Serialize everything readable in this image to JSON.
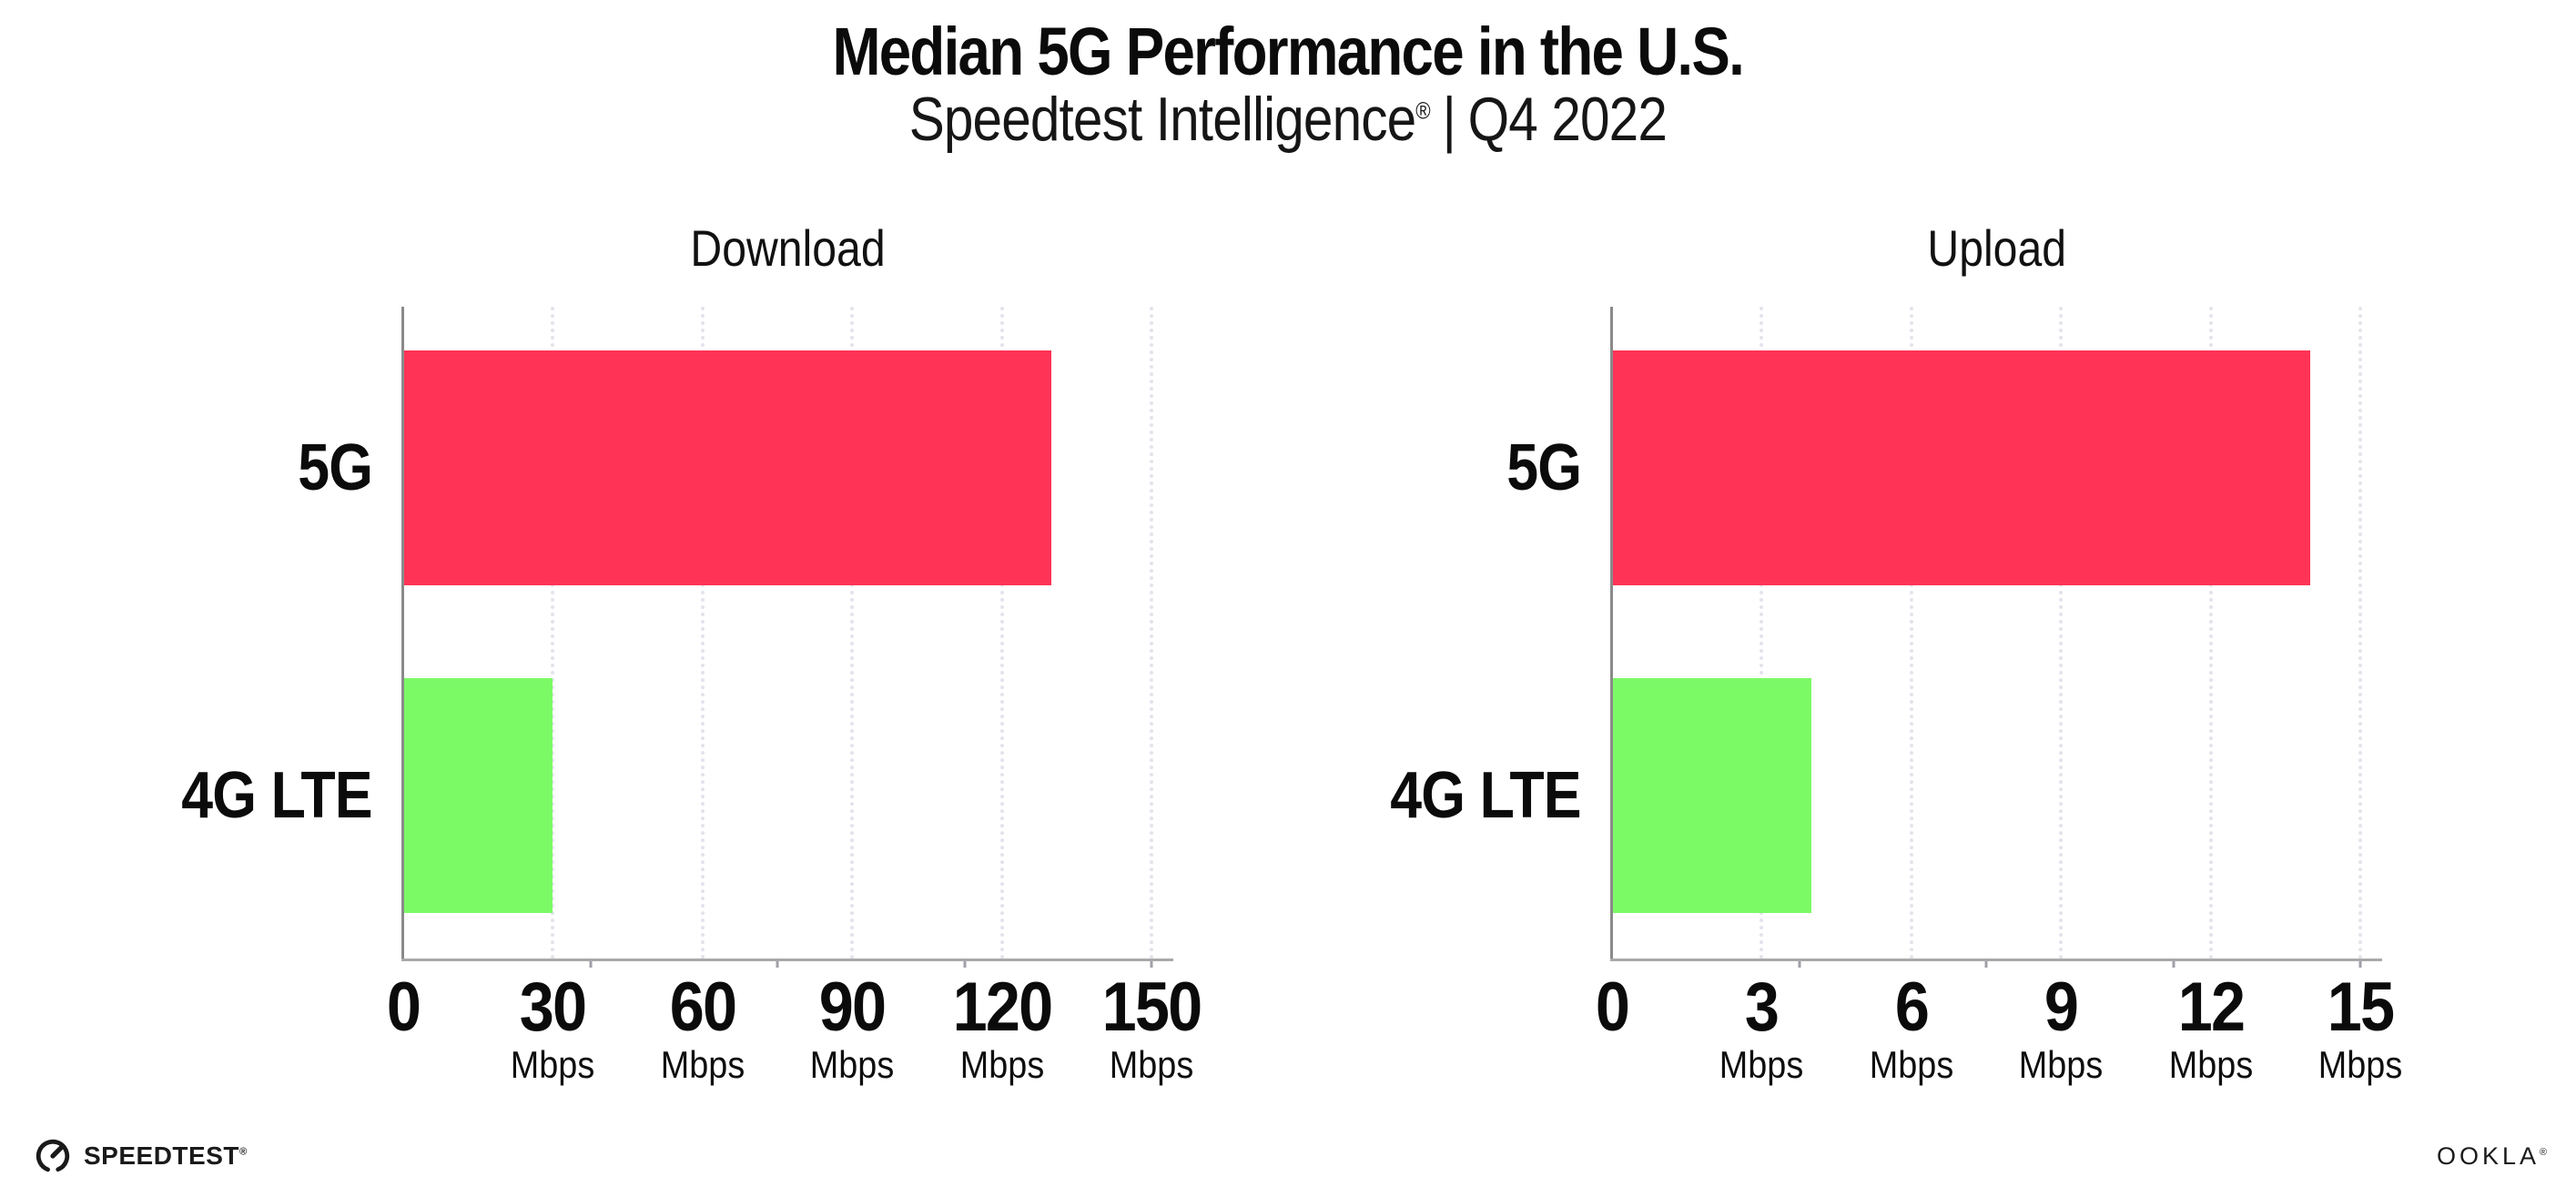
{
  "header": {
    "title": "Median 5G Performance in the U.S.",
    "subtitle_brand": "Speedtest Intelligence",
    "registered_mark": "®",
    "subtitle_divider": "|",
    "subtitle_period": "Q4 2022"
  },
  "chart_data": [
    {
      "type": "bar",
      "orientation": "horizontal",
      "title": "Download",
      "categories": [
        "5G",
        "4G LTE"
      ],
      "values": [
        130,
        30
      ],
      "value_unit": "Mbps",
      "xlim": [
        0,
        150
      ],
      "xticks": [
        0,
        30,
        60,
        90,
        120,
        150
      ],
      "xtick_unit_label": "Mbps",
      "unit_label_shown_on_zero_tick": false,
      "bar_colors": [
        "#FF3356",
        "#7CFA66"
      ],
      "grid": "dotted vertical gridlines at each nonzero tick",
      "legend": "none"
    },
    {
      "type": "bar",
      "orientation": "horizontal",
      "title": "Upload",
      "categories": [
        "5G",
        "4G LTE"
      ],
      "values": [
        14,
        4
      ],
      "value_unit": "Mbps",
      "xlim": [
        0,
        15
      ],
      "xticks": [
        0,
        3,
        6,
        9,
        12,
        15
      ],
      "xtick_unit_label": "Mbps",
      "unit_label_shown_on_zero_tick": false,
      "bar_colors": [
        "#FF3356",
        "#7CFA66"
      ],
      "grid": "dotted vertical gridlines at each nonzero tick",
      "legend": "none"
    }
  ],
  "colors": {
    "bar_5g": "#FF3356",
    "bar_4g_lte": "#7CFA66",
    "axis_spine": "#8A8A8A",
    "axis_line": "#A9A9A9",
    "gridline": "#E3E3EC",
    "text": "#0B0B0B",
    "background": "#FFFFFF"
  },
  "footer": {
    "speedtest_label": "SPEEDTEST",
    "speedtest_mark": "®",
    "ookla_label": "OOKLA",
    "ookla_mark": "®"
  }
}
